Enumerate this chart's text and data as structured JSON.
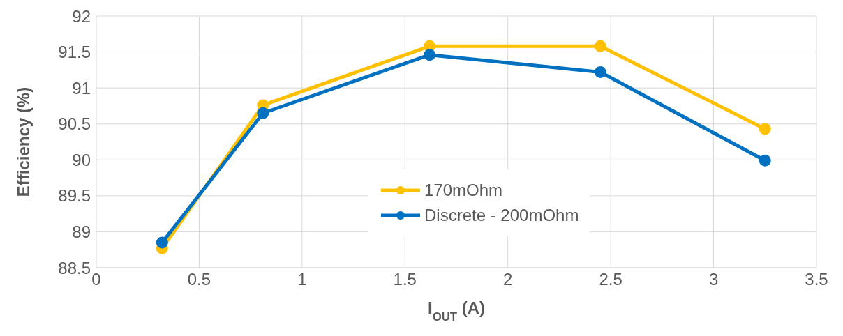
{
  "chart_data": {
    "type": "line",
    "xlabel": "I$_{OUT}$ (A)",
    "ylabel": "Efficiency (%)",
    "x": [
      0.32,
      0.81,
      1.62,
      2.45,
      3.25
    ],
    "series": [
      {
        "name": "170mOhm",
        "color": "#ffc000",
        "values": [
          88.77,
          90.76,
          91.58,
          91.58,
          90.43
        ]
      },
      {
        "name": "Discrete - 200mOhm",
        "color": "#0070c0",
        "values": [
          88.85,
          90.65,
          91.46,
          91.22,
          89.99
        ]
      }
    ],
    "xlim": [
      0,
      3.5
    ],
    "xticks": [
      0,
      0.5,
      1,
      1.5,
      2,
      2.5,
      3,
      3.5
    ],
    "ylim": [
      88.5,
      92
    ],
    "yticks": [
      88.5,
      89,
      89.5,
      90,
      90.5,
      91,
      91.5,
      92
    ],
    "grid": true,
    "legend": "bottom right",
    "marker": "circle",
    "line_style": "solid"
  }
}
